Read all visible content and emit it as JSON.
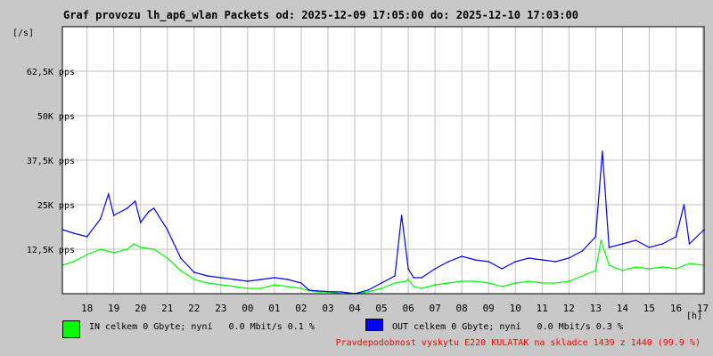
{
  "chart_data": {
    "type": "line",
    "title": "Graf provozu lh_ap6_wlan Packets od: 2025-12-09 17:05:00 do: 2025-12-10 17:03:00",
    "ylabel": "[/s]",
    "xlabel": "[h]",
    "ylim": [
      0,
      75000
    ],
    "xlim": [
      17.08,
      41.05
    ],
    "y_ticks": [
      {
        "value": 12500,
        "label": "12,5K pps"
      },
      {
        "value": 25000,
        "label": "25K pps"
      },
      {
        "value": 37500,
        "label": "37,5K pps"
      },
      {
        "value": 50000,
        "label": "50K pps"
      },
      {
        "value": 62500,
        "label": "62,5K pps"
      }
    ],
    "x_ticks": [
      {
        "value": 18,
        "label": "18"
      },
      {
        "value": 19,
        "label": "19"
      },
      {
        "value": 20,
        "label": "20"
      },
      {
        "value": 21,
        "label": "21"
      },
      {
        "value": 22,
        "label": "22"
      },
      {
        "value": 23,
        "label": "23"
      },
      {
        "value": 24,
        "label": "00"
      },
      {
        "value": 25,
        "label": "01"
      },
      {
        "value": 26,
        "label": "02"
      },
      {
        "value": 27,
        "label": "03"
      },
      {
        "value": 28,
        "label": "04"
      },
      {
        "value": 29,
        "label": "05"
      },
      {
        "value": 30,
        "label": "06"
      },
      {
        "value": 31,
        "label": "07"
      },
      {
        "value": 32,
        "label": "08"
      },
      {
        "value": 33,
        "label": "09"
      },
      {
        "value": 34,
        "label": "10"
      },
      {
        "value": 35,
        "label": "11"
      },
      {
        "value": 36,
        "label": "12"
      },
      {
        "value": 37,
        "label": "13"
      },
      {
        "value": 38,
        "label": "14"
      },
      {
        "value": 39,
        "label": "15"
      },
      {
        "value": 40,
        "label": "16"
      },
      {
        "value": 41,
        "label": "17"
      }
    ],
    "grid": true,
    "series": [
      {
        "name": "IN",
        "color": "#00ff00",
        "x": [
          17.08,
          17.5,
          18.0,
          18.5,
          18.75,
          19.0,
          19.5,
          19.75,
          20.0,
          20.5,
          21.0,
          21.5,
          22.0,
          22.5,
          23.0,
          23.5,
          24.0,
          24.5,
          25.0,
          25.5,
          26.0,
          26.3,
          26.6,
          27.0,
          27.5,
          28.0,
          28.5,
          29.0,
          29.5,
          29.9,
          30.0,
          30.2,
          30.5,
          31.0,
          31.5,
          32.0,
          32.5,
          33.0,
          33.5,
          34.0,
          34.5,
          35.0,
          35.5,
          36.0,
          36.5,
          37.0,
          37.2,
          37.5,
          38.0,
          38.5,
          39.0,
          39.5,
          40.0,
          40.5,
          41.05
        ],
        "y": [
          8000,
          9000,
          11000,
          12500,
          12000,
          11500,
          12500,
          14000,
          13000,
          12500,
          10000,
          6500,
          4000,
          3000,
          2500,
          2000,
          1500,
          1500,
          2500,
          2000,
          1500,
          800,
          500,
          500,
          0,
          0,
          500,
          1500,
          3000,
          3500,
          4000,
          2000,
          1500,
          2500,
          3000,
          3500,
          3500,
          3000,
          2000,
          3000,
          3500,
          3000,
          3000,
          3500,
          5000,
          6500,
          15000,
          8000,
          6500,
          7500,
          7000,
          7500,
          7000,
          8500,
          8000
        ]
      },
      {
        "name": "OUT",
        "color": "#0000ff",
        "x": [
          17.08,
          17.5,
          18.0,
          18.5,
          18.8,
          19.0,
          19.5,
          19.8,
          20.0,
          20.3,
          20.5,
          21.0,
          21.5,
          22.0,
          22.5,
          23.0,
          23.5,
          24.0,
          24.5,
          25.0,
          25.5,
          26.0,
          26.3,
          26.6,
          27.0,
          27.5,
          28.0,
          28.5,
          29.0,
          29.5,
          29.75,
          30.0,
          30.2,
          30.5,
          31.0,
          31.5,
          32.0,
          32.5,
          33.0,
          33.5,
          34.0,
          34.5,
          35.0,
          35.5,
          36.0,
          36.5,
          37.0,
          37.25,
          37.5,
          38.0,
          38.5,
          39.0,
          39.5,
          40.0,
          40.3,
          40.5,
          41.05
        ],
        "y": [
          18000,
          17000,
          16000,
          21000,
          28000,
          22000,
          24000,
          26000,
          20000,
          23000,
          24000,
          18000,
          10000,
          6000,
          5000,
          4500,
          4000,
          3500,
          4000,
          4500,
          4000,
          3000,
          1000,
          800,
          600,
          500,
          0,
          1000,
          3000,
          5000,
          22000,
          7000,
          4500,
          4500,
          7000,
          9000,
          10500,
          9500,
          9000,
          7000,
          9000,
          10000,
          9500,
          9000,
          10000,
          12000,
          16000,
          40000,
          13000,
          14000,
          15000,
          13000,
          14000,
          16000,
          25000,
          14000,
          18000
        ]
      }
    ],
    "legend": [
      {
        "color": "#00ff00",
        "label": "IN celkem 0 Gbyte; nyní   0.0 Mbit/s 0.1 %"
      },
      {
        "color": "#0000ff",
        "label": "OUT celkem 0 Gbyte; nyní   0.0 Mbit/s 0.3 %"
      }
    ],
    "note": "Pravdepodobnost vyskytu E220 KULATAK na skladce 1439 z 1440 (99.9 %)",
    "note_color": "#ff0000"
  }
}
